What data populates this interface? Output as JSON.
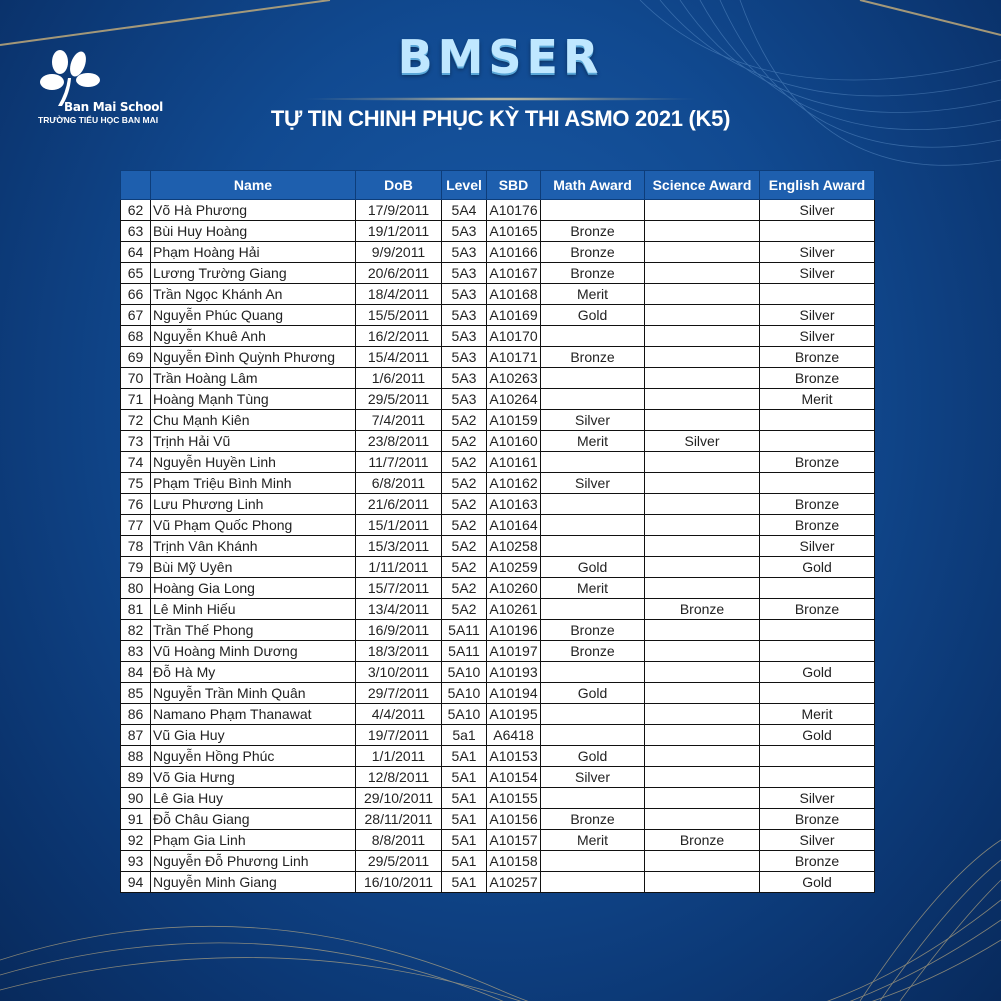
{
  "logo": {
    "school_name": "Ban Mai School",
    "subtitle": "TRƯỜNG TIỂU HỌC BAN MAI"
  },
  "brand": "BMSER",
  "title": "TỰ TIN CHINH PHỤC KỲ THI ASMO 2021 (K5)",
  "colors": {
    "header_bg": "#1e5fae",
    "background": "#114a91",
    "accent_gold": "#e8c987"
  },
  "table": {
    "headers": [
      "",
      "Name",
      "DoB",
      "Level",
      "SBD",
      "Math Award",
      "Science Award",
      "English Award"
    ],
    "rows": [
      [
        "62",
        "Võ Hà Phương",
        "17/9/2011",
        "5A4",
        "A10176",
        "",
        "",
        "Silver"
      ],
      [
        "63",
        "Bùi Huy Hoàng",
        "19/1/2011",
        "5A3",
        "A10165",
        "Bronze",
        "",
        ""
      ],
      [
        "64",
        "Phạm Hoàng Hải",
        "9/9/2011",
        "5A3",
        "A10166",
        "Bronze",
        "",
        "Silver"
      ],
      [
        "65",
        "Lương Trường Giang",
        "20/6/2011",
        "5A3",
        "A10167",
        "Bronze",
        "",
        "Silver"
      ],
      [
        "66",
        "Trần Ngọc Khánh An",
        "18/4/2011",
        "5A3",
        "A10168",
        "Merit",
        "",
        ""
      ],
      [
        "67",
        "Nguyễn Phúc Quang",
        "15/5/2011",
        "5A3",
        "A10169",
        "Gold",
        "",
        "Silver"
      ],
      [
        "68",
        "Nguyễn Khuê Anh",
        "16/2/2011",
        "5A3",
        "A10170",
        "",
        "",
        "Silver"
      ],
      [
        "69",
        "Nguyễn Đình Quỳnh Phương",
        "15/4/2011",
        "5A3",
        "A10171",
        "Bronze",
        "",
        "Bronze"
      ],
      [
        "70",
        "Trần Hoàng Lâm",
        "1/6/2011",
        "5A3",
        "A10263",
        "",
        "",
        "Bronze"
      ],
      [
        "71",
        "Hoàng Mạnh Tùng",
        "29/5/2011",
        "5A3",
        "A10264",
        "",
        "",
        "Merit"
      ],
      [
        "72",
        "Chu Mạnh Kiên",
        "7/4/2011",
        "5A2",
        "A10159",
        "Silver",
        "",
        ""
      ],
      [
        "73",
        "Trịnh Hải Vũ",
        "23/8/2011",
        "5A2",
        "A10160",
        "Merit",
        "Silver",
        ""
      ],
      [
        "74",
        "Nguyễn Huyền Linh",
        "11/7/2011",
        "5A2",
        "A10161",
        "",
        "",
        "Bronze"
      ],
      [
        "75",
        "Phạm Triệu Bình Minh",
        "6/8/2011",
        "5A2",
        "A10162",
        "Silver",
        "",
        ""
      ],
      [
        "76",
        "Lưu Phương Linh",
        "21/6/2011",
        "5A2",
        "A10163",
        "",
        "",
        "Bronze"
      ],
      [
        "77",
        "Vũ Phạm Quốc Phong",
        "15/1/2011",
        "5A2",
        "A10164",
        "",
        "",
        "Bronze"
      ],
      [
        "78",
        "Trịnh Vân Khánh",
        "15/3/2011",
        "5A2",
        "A10258",
        "",
        "",
        "Silver"
      ],
      [
        "79",
        "Bùi Mỹ Uyên",
        "1/11/2011",
        "5A2",
        "A10259",
        "Gold",
        "",
        "Gold"
      ],
      [
        "80",
        "Hoàng Gia Long",
        "15/7/2011",
        "5A2",
        "A10260",
        "Merit",
        "",
        ""
      ],
      [
        "81",
        "Lê Minh Hiếu",
        "13/4/2011",
        "5A2",
        "A10261",
        "",
        "Bronze",
        "Bronze"
      ],
      [
        "82",
        "Trần Thế Phong",
        "16/9/2011",
        "5A11",
        "A10196",
        "Bronze",
        "",
        ""
      ],
      [
        "83",
        "Vũ Hoàng Minh Dương",
        "18/3/2011",
        "5A11",
        "A10197",
        "Bronze",
        "",
        ""
      ],
      [
        "84",
        "Đỗ Hà My",
        "3/10/2011",
        "5A10",
        "A10193",
        "",
        "",
        "Gold"
      ],
      [
        "85",
        "Nguyễn Trần Minh Quân",
        "29/7/2011",
        "5A10",
        "A10194",
        "Gold",
        "",
        ""
      ],
      [
        "86",
        "Namano Phạm Thanawat",
        "4/4/2011",
        "5A10",
        "A10195",
        "",
        "",
        "Merit"
      ],
      [
        "87",
        "Vũ Gia Huy",
        "19/7/2011",
        "5a1",
        "A6418",
        "",
        "",
        "Gold"
      ],
      [
        "88",
        "Nguyễn Hồng Phúc",
        "1/1/2011",
        "5A1",
        "A10153",
        "Gold",
        "",
        ""
      ],
      [
        "89",
        "Võ Gia Hưng",
        "12/8/2011",
        "5A1",
        "A10154",
        "Silver",
        "",
        ""
      ],
      [
        "90",
        "Lê Gia Huy",
        "29/10/2011",
        "5A1",
        "A10155",
        "",
        "",
        "Silver"
      ],
      [
        "91",
        "Đỗ Châu Giang",
        "28/11/2011",
        "5A1",
        "A10156",
        "Bronze",
        "",
        "Bronze"
      ],
      [
        "92",
        "Phạm Gia Linh",
        "8/8/2011",
        "5A1",
        "A10157",
        "Merit",
        "Bronze",
        "Silver"
      ],
      [
        "93",
        "Nguyễn Đỗ Phương Linh",
        "29/5/2011",
        "5A1",
        "A10158",
        "",
        "",
        "Bronze"
      ],
      [
        "94",
        "Nguyễn Minh Giang",
        "16/10/2011",
        "5A1",
        "A10257",
        "",
        "",
        "Gold"
      ]
    ]
  }
}
